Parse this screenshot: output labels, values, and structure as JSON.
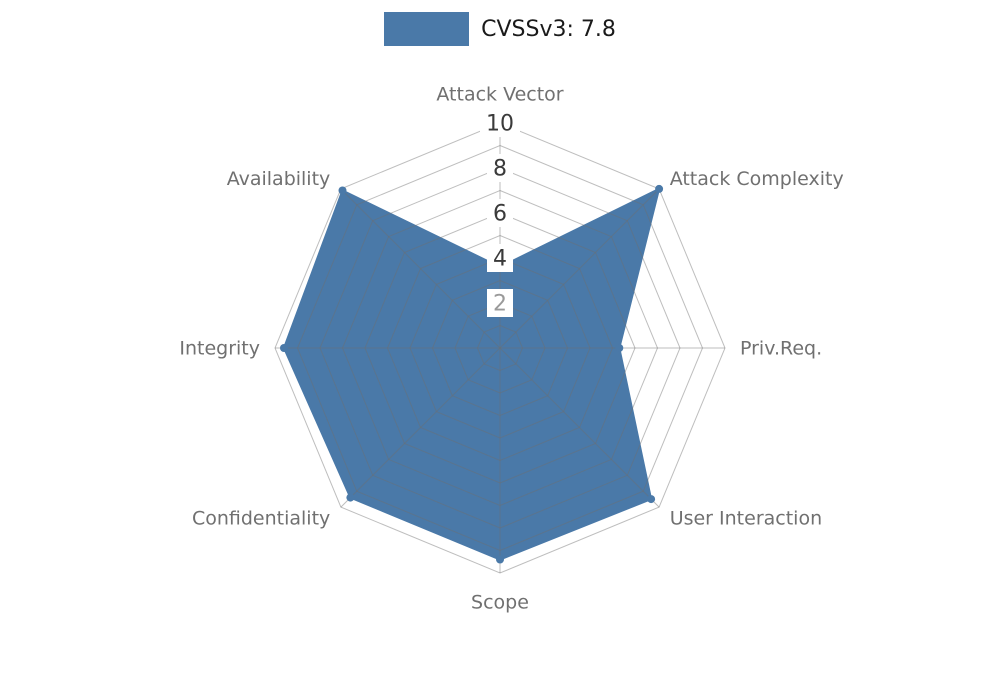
{
  "figure": {
    "background": "#ffffff"
  },
  "legend": {
    "label": "CVSSv3: 7.8"
  },
  "chart_data": {
    "type": "radar",
    "title": "",
    "categories": [
      "Attack Vector",
      "Attack Complexity",
      "Priv.Req.",
      "User Interaction",
      "Scope",
      "Confidentiality",
      "Integrity",
      "Availability"
    ],
    "series": [
      {
        "name": "CVSSv3: 7.8",
        "values": [
          3.6,
          10,
          5.3,
          9.5,
          9.4,
          9.4,
          9.6,
          9.9
        ],
        "color": "#4a79a8"
      }
    ],
    "rmin": 0,
    "rmax": 10,
    "ring_step": 1,
    "rtick_values": [
      2,
      4,
      6,
      8,
      10
    ],
    "rtick_labels": [
      "2",
      "4",
      "6",
      "8",
      "10"
    ],
    "grid": true,
    "legend_position": "top-center",
    "colors": {
      "fill": "#4a79a8",
      "grid": "#6e6e6e",
      "grid_opacity": 0.45,
      "axis_label": "#707070",
      "tick_label": "#3a3a3a",
      "tick_label_min": "#9a9a9a",
      "tick_box": "#ffffff",
      "legend_text": "#1a1a1a"
    }
  }
}
